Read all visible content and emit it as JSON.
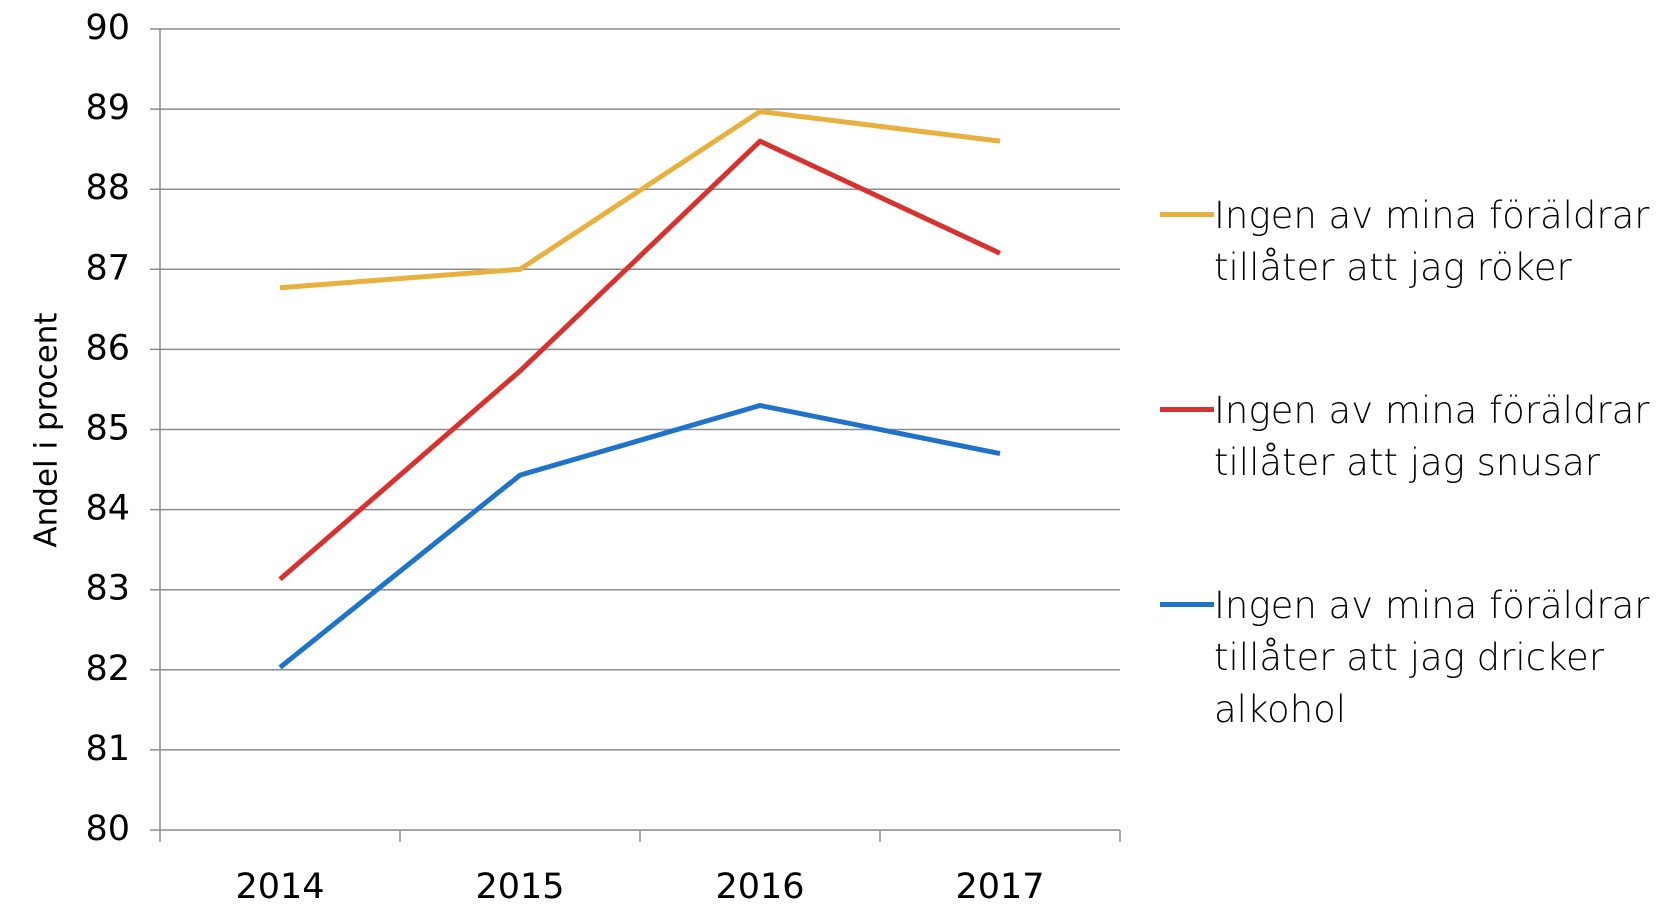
{
  "chart_data": {
    "type": "line",
    "y_label": "Andel i procent",
    "categories": [
      "2014",
      "2015",
      "2016",
      "2017"
    ],
    "series": [
      {
        "name": "Ingen av mina föräldrar tillåter att jag röker",
        "color": "#e8b03c",
        "values": [
          86.77,
          87.0,
          88.97,
          88.6
        ]
      },
      {
        "name": "Ingen av mina föräldrar tillåter att jag snusar",
        "color": "#d8322e",
        "values": [
          83.13,
          85.73,
          88.6,
          87.2
        ]
      },
      {
        "name": "Ingen av mina föräldrar tillåter att jag dricker alkohol",
        "color": "#1f73c8",
        "values": [
          82.03,
          84.43,
          85.3,
          84.7
        ]
      }
    ],
    "ylim": [
      80,
      90
    ],
    "yticks": [
      80,
      81,
      82,
      83,
      84,
      85,
      86,
      87,
      88,
      89,
      90
    ],
    "grid": true,
    "legend": "right"
  }
}
